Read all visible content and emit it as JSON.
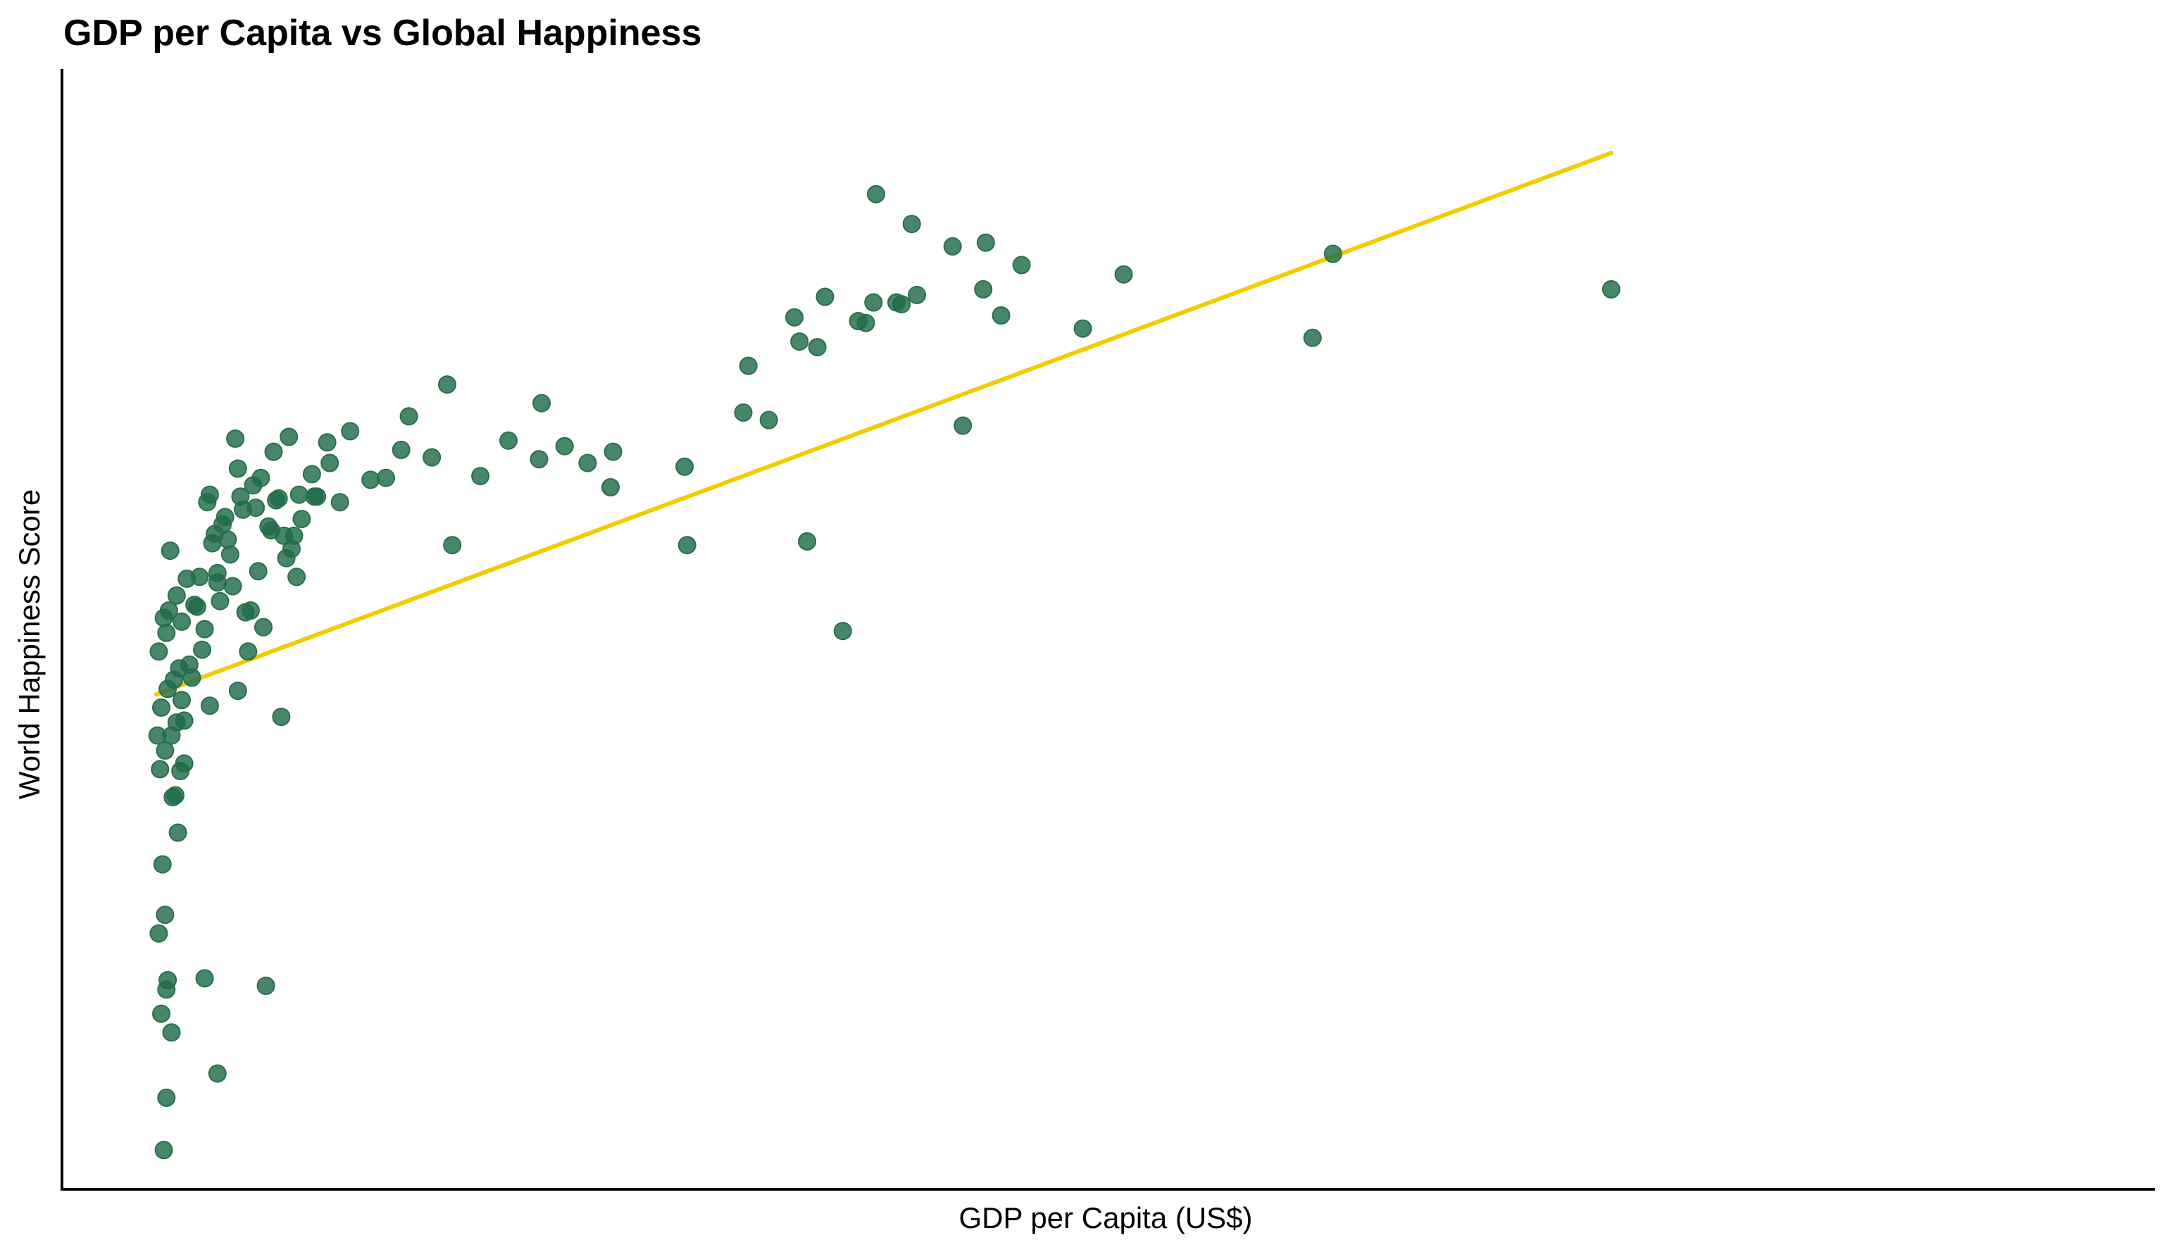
{
  "chart_data": {
    "type": "scatter",
    "title": "GDP per Capita vs Global Happiness",
    "xlabel": "GDP per Capita (US$)",
    "ylabel": "World Happiness Score",
    "xlim": [
      -1690,
      80300
    ],
    "ylim": [
      2.2,
      8.2
    ],
    "grid": false,
    "legend": "none",
    "point_color": "#1e6b47",
    "trend_color": "#f2cc00",
    "points": [
      [
        2300,
        5.26
      ],
      [
        2400,
        5.18
      ],
      [
        2100,
        5.08
      ],
      [
        2500,
        5.3
      ],
      [
        2200,
        4.78
      ],
      [
        2600,
        4.63
      ],
      [
        2350,
        4.55
      ],
      [
        2700,
        4.93
      ],
      [
        2450,
        4.88
      ],
      [
        2800,
        5.38
      ],
      [
        2900,
        4.99
      ],
      [
        3000,
        5.24
      ],
      [
        3100,
        4.71
      ],
      [
        3200,
        5.47
      ],
      [
        2550,
        5.62
      ],
      [
        2650,
        4.3
      ],
      [
        2750,
        4.31
      ],
      [
        2850,
        4.11
      ],
      [
        2950,
        4.44
      ],
      [
        2050,
        4.63
      ],
      [
        2150,
        4.45
      ],
      [
        2250,
        3.94
      ],
      [
        2350,
        3.67
      ],
      [
        2450,
        3.32
      ],
      [
        2100,
        3.57
      ],
      [
        3600,
        5.32
      ],
      [
        3700,
        5.48
      ],
      [
        3800,
        5.09
      ],
      [
        3900,
        5.2
      ],
      [
        4000,
        5.88
      ],
      [
        4100,
        5.92
      ],
      [
        4200,
        5.66
      ],
      [
        4300,
        5.71
      ],
      [
        4400,
        5.45
      ],
      [
        4500,
        5.35
      ],
      [
        4600,
        5.76
      ],
      [
        4700,
        5.8
      ],
      [
        4800,
        5.68
      ],
      [
        4900,
        5.6
      ],
      [
        5000,
        5.43
      ],
      [
        5100,
        6.22
      ],
      [
        5200,
        6.06
      ],
      [
        5300,
        5.91
      ],
      [
        5400,
        5.84
      ],
      [
        5500,
        5.29
      ],
      [
        5600,
        5.08
      ],
      [
        5700,
        5.3
      ],
      [
        5800,
        5.97
      ],
      [
        5900,
        5.85
      ],
      [
        6000,
        5.51
      ],
      [
        6100,
        6.01
      ],
      [
        6200,
        5.21
      ],
      [
        6300,
        3.29
      ],
      [
        6400,
        5.75
      ],
      [
        6500,
        5.73
      ],
      [
        6600,
        6.15
      ],
      [
        6700,
        5.89
      ],
      [
        6800,
        5.9
      ],
      [
        6900,
        4.73
      ],
      [
        7000,
        5.7
      ],
      [
        7100,
        5.58
      ],
      [
        7200,
        6.23
      ],
      [
        7300,
        5.63
      ],
      [
        7400,
        5.7
      ],
      [
        7500,
        5.48
      ],
      [
        7600,
        5.92
      ],
      [
        7700,
        5.79
      ],
      [
        3400,
        4.94
      ],
      [
        3500,
        5.33
      ],
      [
        3300,
        5.01
      ],
      [
        3000,
        4.82
      ],
      [
        2800,
        4.7
      ],
      [
        3100,
        4.48
      ],
      [
        4100,
        4.79
      ],
      [
        4400,
        5.5
      ],
      [
        5200,
        4.87
      ],
      [
        8100,
        6.03
      ],
      [
        8200,
        5.91
      ],
      [
        8300,
        5.91
      ],
      [
        8700,
        6.2
      ],
      [
        8800,
        6.09
      ],
      [
        9200,
        5.88
      ],
      [
        9600,
        6.26
      ],
      [
        10400,
        6.0
      ],
      [
        11000,
        6.01
      ],
      [
        11600,
        6.16
      ],
      [
        11900,
        6.34
      ],
      [
        13400,
        6.51
      ],
      [
        13600,
        5.65
      ],
      [
        12800,
        6.12
      ],
      [
        14700,
        6.02
      ],
      [
        15800,
        6.21
      ],
      [
        17000,
        6.11
      ],
      [
        18000,
        6.18
      ],
      [
        17100,
        6.41
      ],
      [
        18900,
        6.09
      ],
      [
        19900,
        6.15
      ],
      [
        19800,
        5.96
      ],
      [
        22700,
        6.07
      ],
      [
        22800,
        5.65
      ],
      [
        25000,
        6.36
      ],
      [
        26000,
        6.32
      ],
      [
        25200,
        6.61
      ],
      [
        27500,
        5.67
      ],
      [
        27200,
        6.74
      ],
      [
        27000,
        6.87
      ],
      [
        28200,
        6.98
      ],
      [
        27900,
        6.71
      ],
      [
        29500,
        6.85
      ],
      [
        29800,
        6.84
      ],
      [
        30100,
        6.95
      ],
      [
        31800,
        6.99
      ],
      [
        31200,
        6.94
      ],
      [
        31000,
        6.95
      ],
      [
        28900,
        5.19
      ],
      [
        30200,
        7.53
      ],
      [
        31600,
        7.37
      ],
      [
        33200,
        7.25
      ],
      [
        34400,
        7.02
      ],
      [
        35100,
        6.88
      ],
      [
        33600,
        6.29
      ],
      [
        34500,
        7.27
      ],
      [
        35900,
        7.15
      ],
      [
        38300,
        6.81
      ],
      [
        39900,
        7.1
      ],
      [
        47300,
        6.76
      ],
      [
        48100,
        7.21
      ],
      [
        59000,
        7.02
      ],
      [
        2400,
        2.69
      ],
      [
        4400,
        2.82
      ],
      [
        2300,
        2.41
      ],
      [
        2400,
        3.27
      ],
      [
        3900,
        3.33
      ],
      [
        2600,
        3.04
      ],
      [
        2200,
        3.14
      ]
    ],
    "trendline": [
      [
        2000,
        4.85
      ],
      [
        59000,
        7.75
      ]
    ]
  }
}
